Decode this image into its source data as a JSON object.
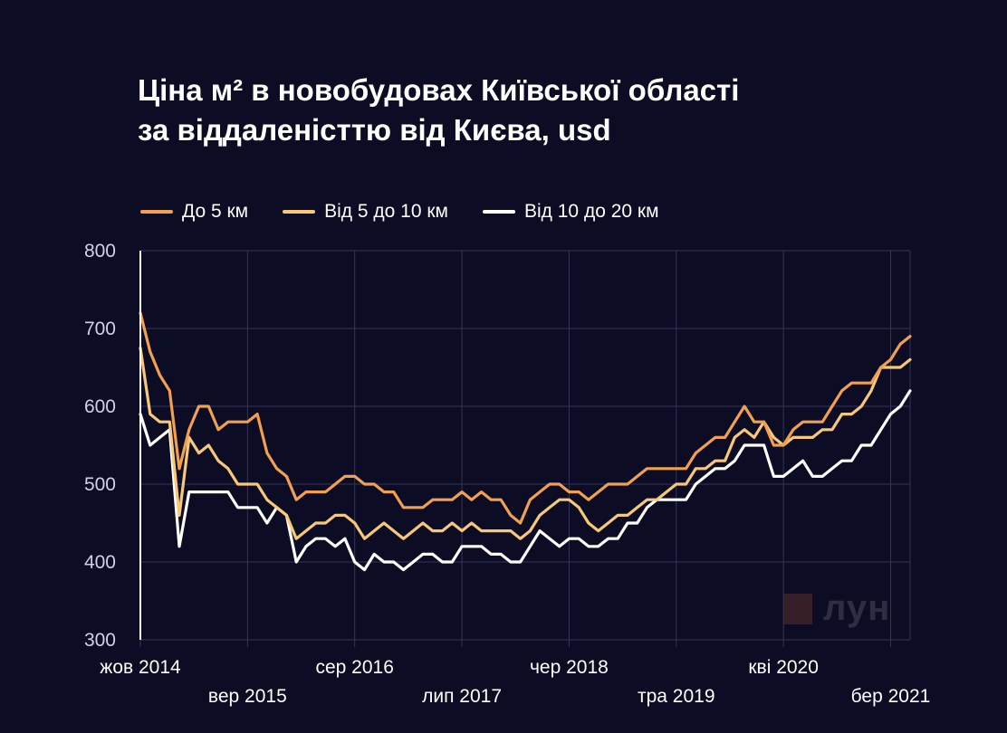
{
  "title_line1": "Ціна м² в новобудовах Київської області",
  "title_line2": "за віддаленісттю від Києва, usd",
  "watermark": "лун",
  "chart_data": {
    "type": "line",
    "title": "Ціна м² в новобудовах Київської області за віддаленісттю від Києва, usd",
    "xlabel": "",
    "ylabel": "",
    "ylim": [
      300,
      800
    ],
    "yticks": [
      300,
      400,
      500,
      600,
      700,
      800
    ],
    "grid": true,
    "legend_position": "top-left",
    "x_ticks": [
      {
        "label": "жов 2014",
        "index": 0,
        "row": 1
      },
      {
        "label": "вер 2015",
        "index": 11,
        "row": 2
      },
      {
        "label": "сер 2016",
        "index": 22,
        "row": 1
      },
      {
        "label": "лип 2017",
        "index": 33,
        "row": 2
      },
      {
        "label": "чер 2018",
        "index": 44,
        "row": 1
      },
      {
        "label": "тра 2019",
        "index": 55,
        "row": 2
      },
      {
        "label": "кві 2020",
        "index": 66,
        "row": 1
      },
      {
        "label": "бер 2021",
        "index": 77,
        "row": 2
      }
    ],
    "x_range": [
      0,
      79
    ],
    "series": [
      {
        "name": "До 5 км",
        "color": "#f0a050",
        "values": [
          720,
          670,
          640,
          620,
          520,
          570,
          600,
          600,
          570,
          580,
          580,
          580,
          590,
          540,
          520,
          510,
          480,
          490,
          490,
          490,
          500,
          510,
          510,
          500,
          500,
          490,
          490,
          470,
          470,
          470,
          480,
          480,
          480,
          490,
          480,
          490,
          480,
          480,
          460,
          450,
          480,
          490,
          500,
          500,
          490,
          490,
          480,
          490,
          500,
          500,
          500,
          510,
          520,
          520,
          520,
          520,
          520,
          540,
          550,
          560,
          560,
          580,
          600,
          580,
          580,
          550,
          550,
          570,
          580,
          580,
          580,
          600,
          620,
          630,
          630,
          630,
          650,
          660,
          680,
          690
        ]
      },
      {
        "name": "Від 5 до 10 км",
        "color": "#f7c87a",
        "values": [
          675,
          590,
          580,
          580,
          460,
          560,
          540,
          550,
          530,
          520,
          500,
          500,
          500,
          480,
          470,
          460,
          430,
          440,
          450,
          450,
          460,
          460,
          450,
          430,
          440,
          450,
          440,
          430,
          440,
          450,
          440,
          440,
          450,
          440,
          450,
          440,
          440,
          440,
          440,
          430,
          440,
          460,
          470,
          480,
          480,
          470,
          450,
          440,
          450,
          460,
          460,
          470,
          480,
          480,
          490,
          500,
          500,
          520,
          520,
          530,
          530,
          560,
          570,
          560,
          580,
          560,
          550,
          560,
          560,
          560,
          570,
          570,
          590,
          590,
          600,
          620,
          650,
          650,
          650,
          660
        ]
      },
      {
        "name": "Від 10 до 20 км",
        "color": "#ffffff",
        "values": [
          590,
          550,
          560,
          570,
          420,
          490,
          490,
          490,
          490,
          490,
          470,
          470,
          470,
          450,
          470,
          460,
          400,
          420,
          430,
          430,
          420,
          430,
          400,
          390,
          410,
          400,
          400,
          390,
          400,
          410,
          410,
          400,
          400,
          420,
          420,
          420,
          410,
          410,
          400,
          400,
          420,
          440,
          430,
          420,
          430,
          430,
          420,
          420,
          430,
          430,
          450,
          450,
          470,
          480,
          480,
          480,
          480,
          500,
          510,
          520,
          520,
          530,
          550,
          550,
          550,
          510,
          510,
          520,
          530,
          510,
          510,
          520,
          530,
          530,
          550,
          550,
          570,
          590,
          600,
          620
        ]
      }
    ]
  }
}
